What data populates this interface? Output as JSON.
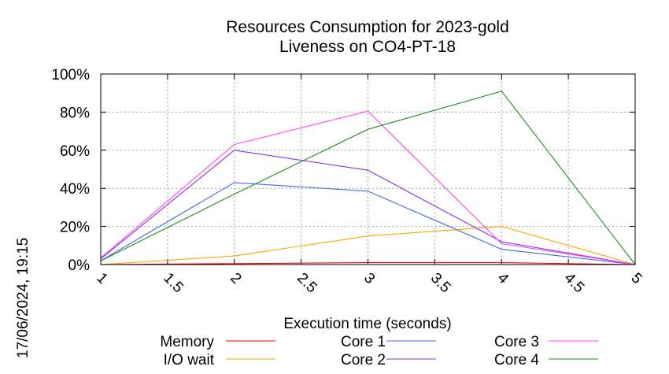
{
  "chart_data": {
    "type": "line",
    "title": "Resources Consumption for 2023-gold",
    "subtitle": "Liveness on CO4-PT-18",
    "xlabel": "Execution time (seconds)",
    "ylabel": "",
    "side_label": "17/06/2024, 19:15",
    "x": [
      1,
      2,
      3,
      4,
      5
    ],
    "xlim": [
      1,
      5
    ],
    "ylim": [
      0,
      100
    ],
    "xticks": [
      "1",
      "1.5",
      "2",
      "2.5",
      "3",
      "3.5",
      "4",
      "4.5",
      "5"
    ],
    "yticks": [
      "0%",
      "20%",
      "40%",
      "60%",
      "80%",
      "100%"
    ],
    "grid": true,
    "legend_position": "bottom",
    "series": [
      {
        "name": "Memory",
        "color": "#ff0000",
        "values": [
          0,
          0.5,
          1,
          1,
          0
        ]
      },
      {
        "name": "I/O wait",
        "color": "#ffa500",
        "values": [
          0,
          4.5,
          15,
          20,
          0
        ]
      },
      {
        "name": "Core 1",
        "color": "#4169e1",
        "values": [
          2,
          43,
          38.5,
          8,
          0
        ]
      },
      {
        "name": "Core 2",
        "color": "#8a2be2",
        "values": [
          3,
          60,
          49.5,
          12,
          0
        ]
      },
      {
        "name": "Core 3",
        "color": "#ff44ff",
        "values": [
          3.5,
          63,
          80.5,
          11,
          0
        ]
      },
      {
        "name": "Core 4",
        "color": "#228b22",
        "values": [
          2,
          37,
          71,
          91,
          0
        ]
      }
    ]
  }
}
